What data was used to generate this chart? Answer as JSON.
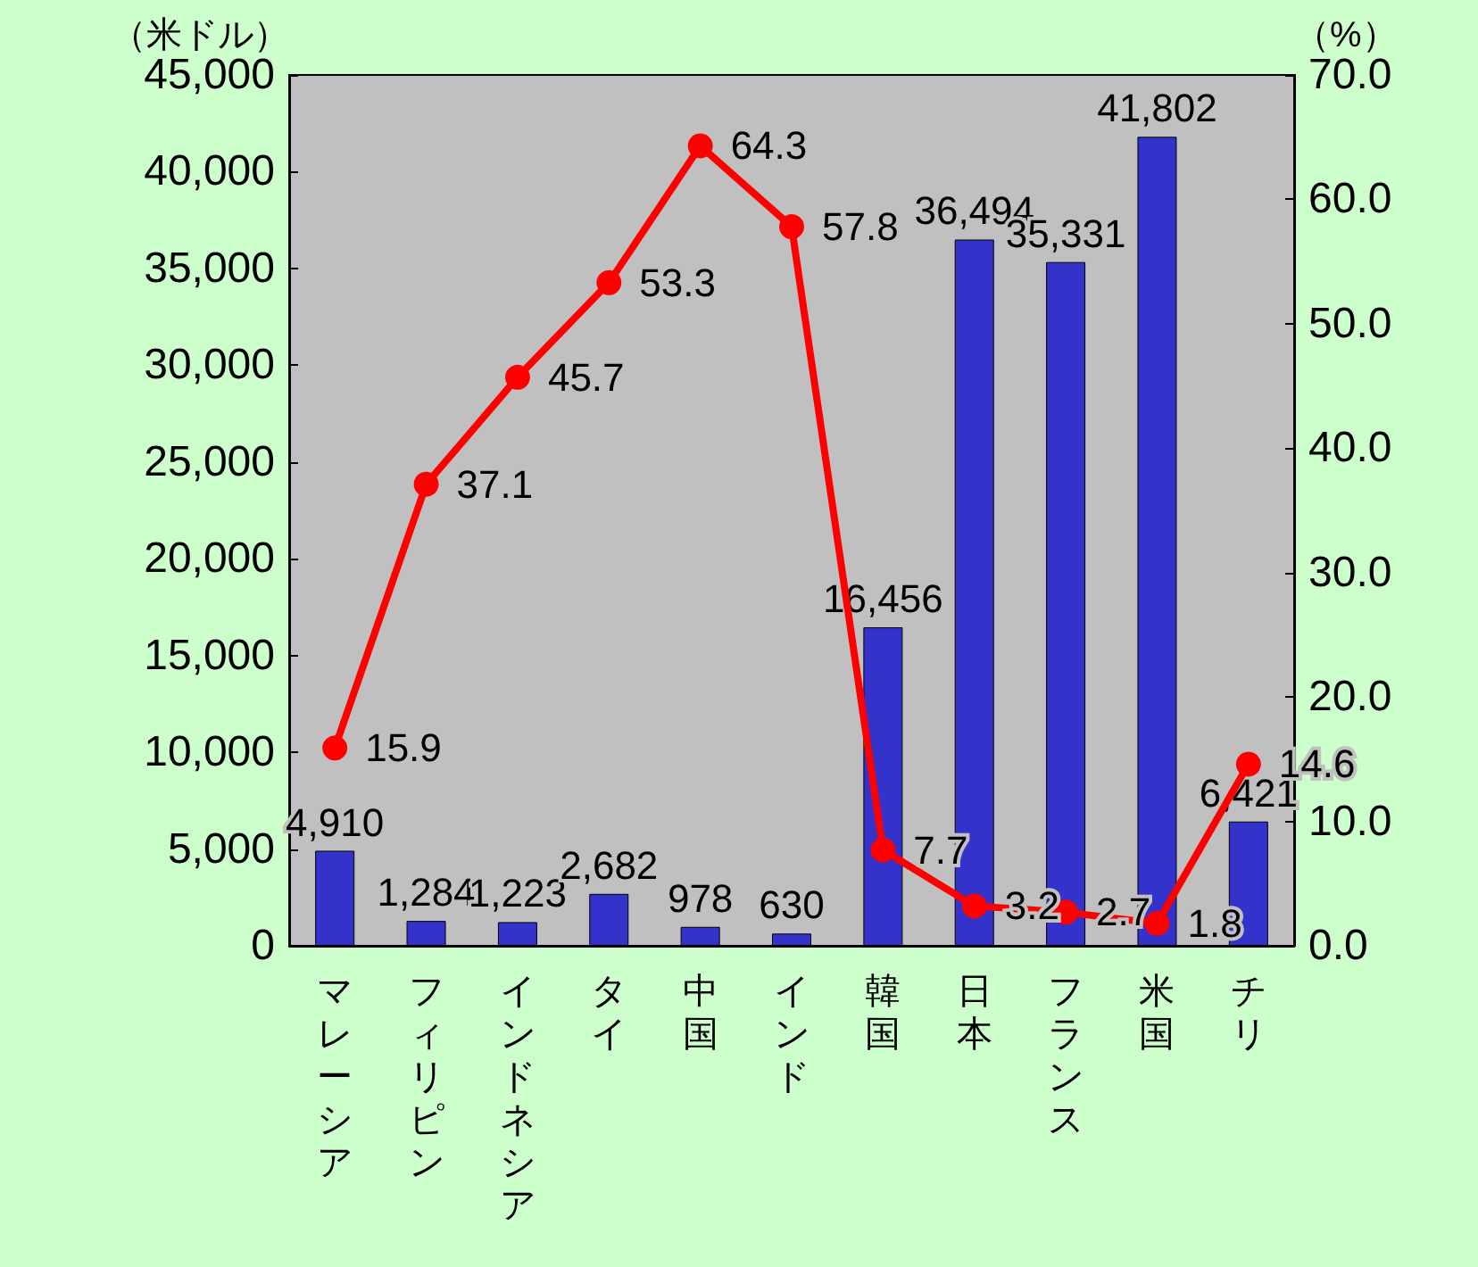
{
  "chart_data": {
    "type": "bar",
    "ylabel": "（米ドル）",
    "y2label": "（%）",
    "categories": [
      "マレーシア",
      "フィリピン",
      "インドネシア",
      "タイ",
      "中国",
      "インド",
      "韓国",
      "日本",
      "フランス",
      "米国",
      "チリ"
    ],
    "series": [
      {
        "color": "#3333cc",
        "values": [
          4910,
          1284,
          1223,
          2682,
          978,
          630,
          16456,
          36494,
          35331,
          41802,
          6421
        ],
        "value_labels": [
          "4,910",
          "1,284",
          "1,223",
          "2,682",
          "978",
          "630",
          "16,456",
          "36,494",
          "35,331",
          "41,802",
          "6,421"
        ]
      },
      {
        "type": "line",
        "axis": "y2",
        "color": "#ff0000",
        "values": [
          15.9,
          37.1,
          45.7,
          53.3,
          64.3,
          57.8,
          7.7,
          3.2,
          2.7,
          1.8,
          14.6
        ],
        "value_labels": [
          "15.9",
          "37.1",
          "45.7",
          "53.3",
          "64.3",
          "57.8",
          "7.7",
          "3.2",
          "2.7",
          "1.8",
          "14.6"
        ]
      }
    ],
    "ylim": [
      0,
      45000
    ],
    "yticks": [
      {
        "value": 0,
        "label": "0"
      },
      {
        "value": 5000,
        "label": "5,000"
      },
      {
        "value": 10000,
        "label": "10,000"
      },
      {
        "value": 15000,
        "label": "15,000"
      },
      {
        "value": 20000,
        "label": "20,000"
      },
      {
        "value": 25000,
        "label": "25,000"
      },
      {
        "value": 30000,
        "label": "30,000"
      },
      {
        "value": 35000,
        "label": "35,000"
      },
      {
        "value": 40000,
        "label": "40,000"
      },
      {
        "value": 45000,
        "label": "45,000"
      }
    ],
    "y2lim": [
      0,
      70
    ],
    "y2ticks": [
      {
        "value": 0,
        "label": "0.0"
      },
      {
        "value": 10,
        "label": "10.0"
      },
      {
        "value": 20,
        "label": "20.0"
      },
      {
        "value": 30,
        "label": "30.0"
      },
      {
        "value": 40,
        "label": "40.0"
      },
      {
        "value": 50,
        "label": "50.0"
      },
      {
        "value": 60,
        "label": "60.0"
      },
      {
        "value": 70,
        "label": "70.0"
      }
    ],
    "grid": false,
    "marker": "circle",
    "line_style": "solid"
  }
}
